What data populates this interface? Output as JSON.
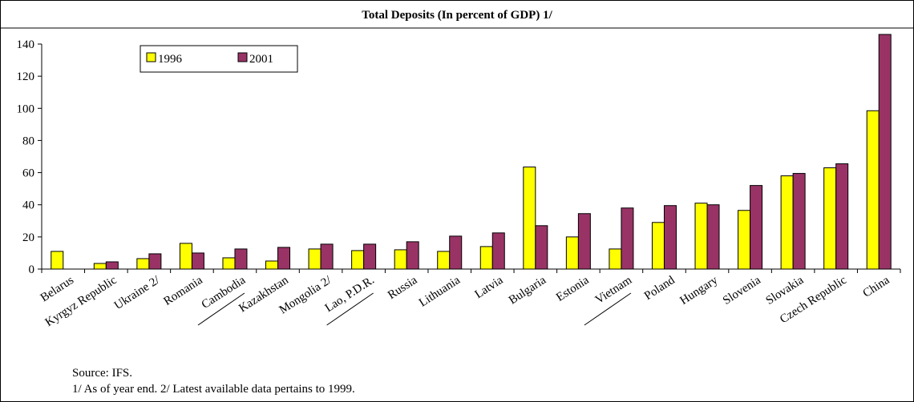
{
  "chart_data": {
    "type": "bar",
    "title": "Total Deposits (In percent of GDP) 1/",
    "categories": [
      "Belarus",
      "Kyrgyz Republic",
      "Ukraine 2/",
      "Romania",
      "Cambodia",
      "Kazakhstan",
      "Mongolia 2/",
      "Lao, P.D.R.",
      "Russia",
      "Lithuania",
      "Latvia",
      "Bulgaria",
      "Estonia",
      "Vietnam",
      "Poland",
      "Hungary",
      "Slovenia",
      "Slovakia",
      "Czech Republic",
      "China"
    ],
    "series": [
      {
        "name": "1996",
        "color": "#ffff00",
        "values": [
          11,
          3.5,
          6.5,
          16,
          7,
          5,
          12.5,
          11.5,
          12,
          11,
          14,
          63.5,
          20,
          12.5,
          29,
          41,
          36.5,
          58,
          63,
          98.5
        ]
      },
      {
        "name": "2001",
        "color": "#993366",
        "values": [
          null,
          4.5,
          9.5,
          10,
          12.5,
          13.5,
          15.5,
          15.5,
          17,
          20.5,
          22.5,
          27,
          34.5,
          38,
          39.5,
          40,
          52,
          59.5,
          65.5,
          150
        ]
      }
    ],
    "ylim": [
      0,
      140
    ],
    "yticks": [
      0,
      20,
      40,
      60,
      80,
      100,
      120,
      140
    ],
    "legend_position": "top-left",
    "grid": false,
    "xlabel": "",
    "ylabel": ""
  },
  "notes": {
    "source": "Source: IFS.",
    "footnote": "1/ As of year end. 2/ Latest available data pertains to 1999."
  }
}
